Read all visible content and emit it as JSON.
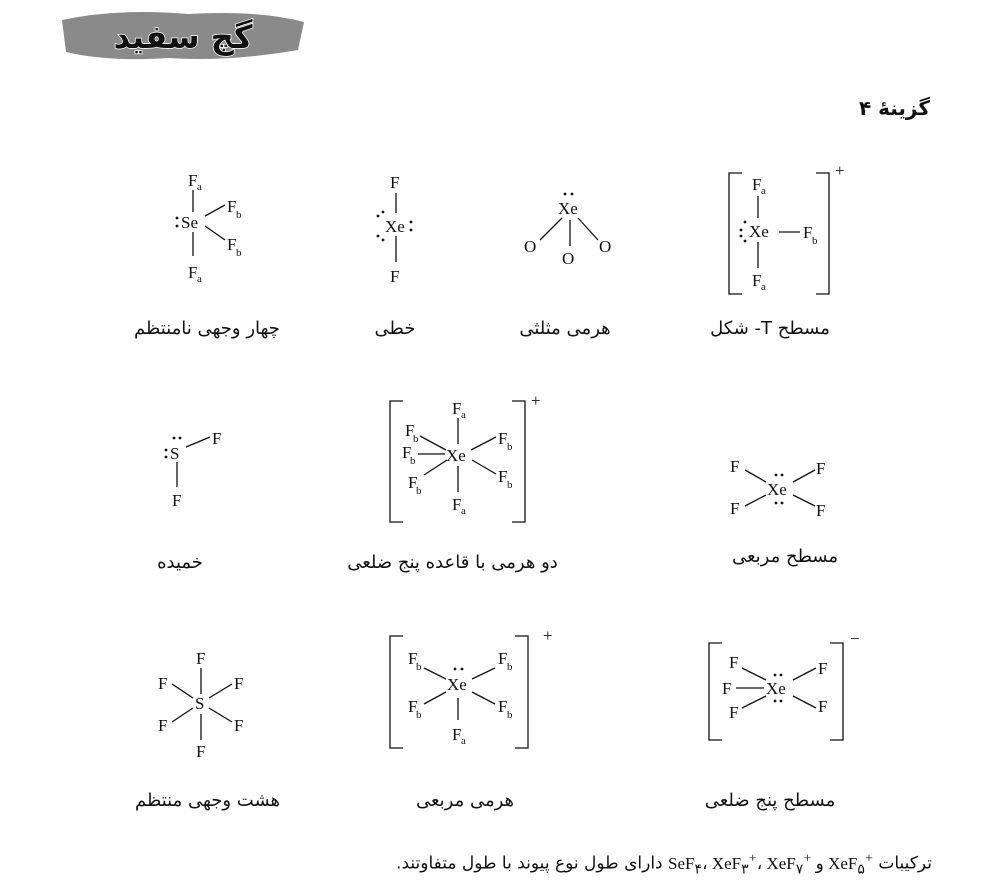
{
  "logo": {
    "text": "گچ سفید",
    "colors": {
      "brush": "#8a8a8a",
      "ink": "#111111",
      "outline": "#ffffff"
    }
  },
  "heading": "گزینهٔ ۴",
  "molecules": [
    {
      "formula": "SeF4",
      "shape": "چهار وجهی نامنتظم"
    },
    {
      "formula": "XeF2",
      "shape": "خطی"
    },
    {
      "formula": "XeO3",
      "shape": "هرمی مثلثی"
    },
    {
      "formula": "XeF3+",
      "shape": "مسطح T- شکل",
      "charge": "+"
    },
    {
      "formula": "SF2",
      "shape": "خمیده"
    },
    {
      "formula": "XeF7+",
      "shape": "دو هرمی با قاعده پنج ضلعی",
      "charge": "+"
    },
    {
      "formula": "XeF4",
      "shape": "مسطح مربعی"
    },
    {
      "formula": "SF6",
      "shape": "هشت وجهی منتظم"
    },
    {
      "formula": "XeF5+",
      "shape": "هرمی مربعی",
      "charge": "+"
    },
    {
      "formula": "XeF5-",
      "shape": "مسطح پنج ضلعی",
      "charge": "−"
    }
  ],
  "atoms": {
    "F": "F",
    "Fa": "F",
    "Fb": "F",
    "a": "a",
    "b": "b",
    "Xe": "Xe",
    "Se": "Se",
    "S": "S",
    "O": "O"
  },
  "footer": {
    "pre": "ترکیبات ",
    "items": [
      "SeF",
      "۴",
      "، ",
      "XeF",
      "۳",
      "+",
      "، ",
      "XeF",
      "۷",
      "+",
      " و ",
      "XeF",
      "۵",
      "+"
    ],
    "post": " دارای طول نوع پیوند با طول متفاوتند."
  }
}
